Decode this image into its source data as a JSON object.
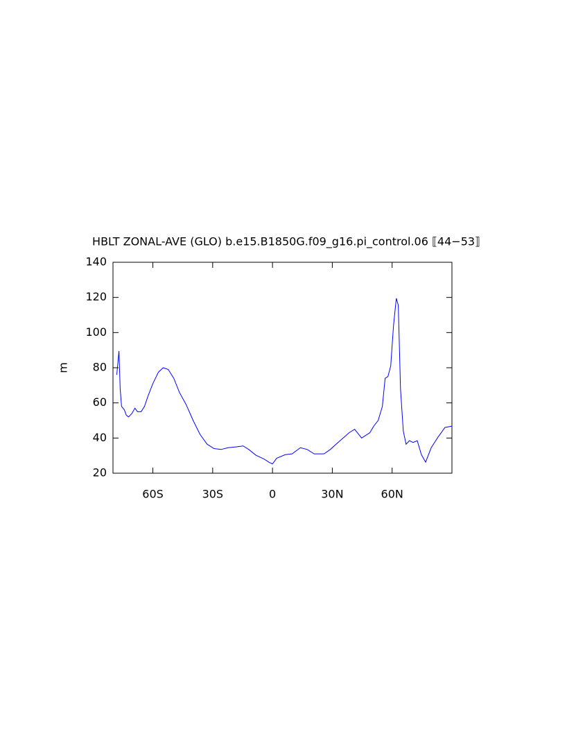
{
  "chart_data": {
    "type": "line",
    "title": "HBLT ZONAL-AVE (GLO) b.e15.B1850G.f09_g16.pi_control.06 ⟦44−53⟧",
    "y_label": "m",
    "xlim": [
      -80,
      90
    ],
    "ylim": [
      20,
      140
    ],
    "xticks": [
      {
        "value": -60,
        "label": "60S"
      },
      {
        "value": -30,
        "label": "30S"
      },
      0,
      {
        "value": 30,
        "label": "30N"
      },
      {
        "value": 60,
        "label": "60N"
      }
    ],
    "yticks": [
      20,
      40,
      60,
      80,
      100,
      120,
      140
    ],
    "x": [
      -78.1,
      -77,
      -76.4,
      -75.7,
      -74.3,
      -73.3,
      -72.2,
      -70.5,
      -69,
      -67.7,
      -65.9,
      -64.2,
      -62.4,
      -60,
      -57.2,
      -54.8,
      -52.3,
      -49.5,
      -46.7,
      -43.3,
      -39.8,
      -36.3,
      -32.8,
      -29.3,
      -25.8,
      -22.3,
      -18.1,
      -14.7,
      -11.9,
      -8.4,
      -4.2,
      -1.4,
      0,
      2.1,
      6.3,
      9.8,
      14,
      17.4,
      20.9,
      25.8,
      29,
      31.4,
      34.9,
      38.4,
      41.2,
      44.7,
      47.4,
      48.8,
      50.9,
      53,
      55.1,
      56.5,
      57.9,
      59.3,
      60.7,
      62.1,
      63.1,
      64.2,
      65.6,
      67,
      68.7,
      70.5,
      72.6,
      74.7,
      76.8,
      79.6,
      83,
      86.5,
      90
    ],
    "series": [
      {
        "color": "#0000ff",
        "values": [
          76,
          89.5,
          68,
          58,
          56,
          53,
          52,
          54,
          57,
          55,
          55,
          58,
          64,
          71,
          77.5,
          80,
          79,
          74,
          66,
          59,
          50,
          42,
          36.5,
          34,
          33.5,
          34.5,
          35,
          35.5,
          33.5,
          30.3,
          28,
          26,
          25.3,
          28.5,
          30.5,
          31,
          34.5,
          33.5,
          31,
          31,
          33.5,
          36,
          39.5,
          43,
          45,
          40,
          42,
          43,
          47,
          50,
          58,
          74,
          75,
          81,
          104,
          119.5,
          115.5,
          68,
          44,
          36.5,
          38.5,
          37.5,
          38.5,
          30.5,
          26.3,
          34.5,
          40.5,
          46,
          46.8
        ]
      }
    ]
  }
}
